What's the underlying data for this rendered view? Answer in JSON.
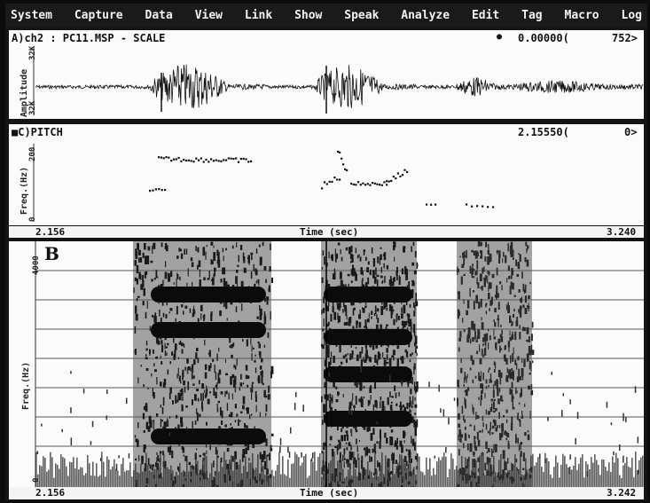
{
  "menu": [
    "System",
    "Capture",
    "Data",
    "View",
    "Link",
    "Show",
    "Speak",
    "Analyze",
    "Edit",
    "Tag",
    "Macro",
    "Log"
  ],
  "waveform_panel": {
    "title": "A)ch2 : PC11.MSP - SCALE",
    "marker_symbol": "●",
    "readout": "0.00000(",
    "readout_right": "752>",
    "y_axis_label": "Amplitude",
    "y_top_tick": "32K",
    "y_bottom_tick": "32K"
  },
  "pitch_panel": {
    "title": "■C)PITCH",
    "readout": "2.15550(",
    "readout_right": "0>",
    "y_axis_label": "Freq.(Hz)",
    "y_top_tick": "200",
    "y_bottom_tick": "0"
  },
  "time_axis_1": {
    "start": "2.156",
    "label": "Time (sec)",
    "end": "3.240"
  },
  "spectrogram_panel": {
    "panel_letter": "B",
    "y_axis_label": "Freq.(Hz)",
    "y_top_tick": "4000",
    "y_bottom_tick": "0"
  },
  "time_axis_2": {
    "start": "2.156",
    "label": "Time (sec)",
    "end": "3.242"
  }
}
